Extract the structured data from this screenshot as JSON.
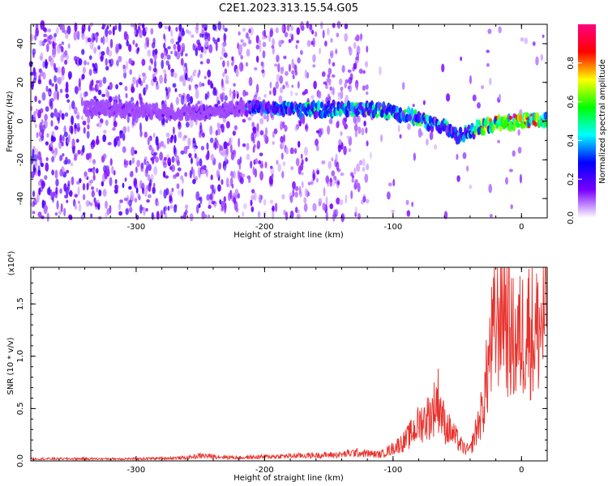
{
  "title": "C2E1.2023.313.15.54.G05",
  "chart_data": [
    {
      "type": "heatmap",
      "xlabel": "Height of straight line (km)",
      "ylabel": "Frequency (Hz)",
      "xlim": [
        -382,
        20
      ],
      "ylim": [
        -50,
        50
      ],
      "xticks": [
        -300,
        -200,
        -100,
        0
      ],
      "yticks": [
        -40,
        -20,
        0,
        20,
        40
      ],
      "colorbar": {
        "label": "Normalized spectral amplitude",
        "range": [
          0,
          1
        ],
        "ticks": [
          0.0,
          0.2,
          0.4,
          0.6,
          0.8
        ],
        "colormap": [
          "#ffffff",
          "#7a00ff",
          "#0000ff",
          "#00ffff",
          "#00ff00",
          "#ffff00",
          "#ff0000",
          "#ff0080"
        ]
      },
      "ridge": [
        {
          "x": -330,
          "y": 7,
          "amp": 0.3
        },
        {
          "x": -255,
          "y": 4,
          "amp": 0.35
        },
        {
          "x": -210,
          "y": 7,
          "amp": 0.45
        },
        {
          "x": -180,
          "y": 6,
          "amp": 0.55
        },
        {
          "x": -150,
          "y": 6,
          "amp": 0.6
        },
        {
          "x": -120,
          "y": 6,
          "amp": 0.6
        },
        {
          "x": -100,
          "y": 5,
          "amp": 0.6
        },
        {
          "x": -80,
          "y": 1,
          "amp": 0.6
        },
        {
          "x": -60,
          "y": -3,
          "amp": 0.55
        },
        {
          "x": -50,
          "y": -8,
          "amp": 0.5
        },
        {
          "x": -35,
          "y": -4,
          "amp": 0.75
        },
        {
          "x": -20,
          "y": -1,
          "amp": 0.8
        },
        {
          "x": 0,
          "y": 0,
          "amp": 0.95
        },
        {
          "x": 20,
          "y": 0,
          "amp": 0.9
        }
      ]
    },
    {
      "type": "line",
      "xlabel": "Height of straight line (km)",
      "ylabel": "SNR (10 * v/v)",
      "yscale_label": "(x10⁴)",
      "xlim": [
        -382,
        20
      ],
      "ylim": [
        0,
        1.85
      ],
      "xticks": [
        -300,
        -200,
        -100,
        0
      ],
      "yticks": [
        0.0,
        0.5,
        1.0,
        1.5
      ],
      "series": [
        {
          "color": "#e8312c",
          "x": [
            -382,
            -350,
            -300,
            -260,
            -250,
            -220,
            -200,
            -170,
            -140,
            -130,
            -110,
            -100,
            -90,
            -80,
            -70,
            -65,
            -60,
            -55,
            -50,
            -45,
            -40,
            -35,
            -30,
            -25,
            -20,
            -15,
            -10,
            -5,
            0,
            5,
            10,
            15,
            20
          ],
          "y": [
            0.02,
            0.02,
            0.02,
            0.03,
            0.05,
            0.03,
            0.04,
            0.05,
            0.06,
            0.08,
            0.06,
            0.12,
            0.2,
            0.35,
            0.45,
            0.6,
            0.35,
            0.28,
            0.2,
            0.12,
            0.1,
            0.3,
            0.5,
            1.0,
            1.3,
            1.6,
            1.25,
            1.1,
            1.2,
            1.3,
            1.2,
            1.3,
            1.4
          ]
        }
      ]
    }
  ]
}
